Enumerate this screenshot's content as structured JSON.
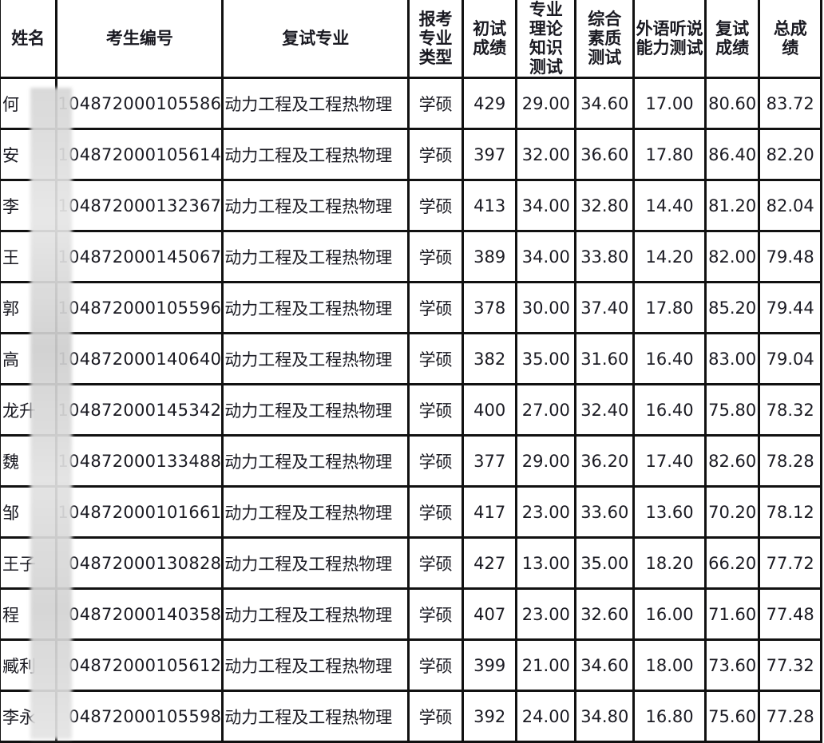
{
  "headers": [
    "姓名",
    "考生编号",
    "复试专业",
    "报考专业类型",
    "初试成绩",
    "专业理论知识测试",
    "综合素质测试",
    "外语听说能力测试",
    "复试成绩",
    "总成绩"
  ],
  "rows": [
    [
      "何",
      "104872000105586",
      "动力工程及工程热物理",
      "学硕",
      "429",
      "29.00",
      "34.60",
      "17.00",
      "80.60",
      "83.72"
    ],
    [
      "安",
      "104872000105614",
      "动力工程及工程热物理",
      "学硕",
      "397",
      "32.00",
      "36.60",
      "17.80",
      "86.40",
      "82.20"
    ],
    [
      "李",
      "104872000132367",
      "动力工程及工程热物理",
      "学硕",
      "413",
      "34.00",
      "32.80",
      "14.40",
      "81.20",
      "82.04"
    ],
    [
      "王",
      "104872000145067",
      "动力工程及工程热物理",
      "学硕",
      "389",
      "34.00",
      "33.80",
      "14.20",
      "82.00",
      "79.48"
    ],
    [
      "郭",
      "104872000105596",
      "动力工程及工程热物理",
      "学硕",
      "378",
      "30.00",
      "37.40",
      "17.80",
      "85.20",
      "79.44"
    ],
    [
      "高",
      "104872000140640",
      "动力工程及工程热物理",
      "学硕",
      "382",
      "35.00",
      "31.60",
      "16.40",
      "83.00",
      "79.04"
    ],
    [
      "龙升",
      "104872000145342",
      "动力工程及工程热物理",
      "学硕",
      "400",
      "27.00",
      "32.40",
      "16.40",
      "75.80",
      "78.32"
    ],
    [
      "魏",
      "104872000133488",
      "动力工程及工程热物理",
      "学硕",
      "377",
      "29.00",
      "36.20",
      "17.40",
      "82.60",
      "78.28"
    ],
    [
      "邹",
      "104872000101661",
      "动力工程及工程热物理",
      "学硕",
      "417",
      "23.00",
      "33.60",
      "13.60",
      "70.20",
      "78.12"
    ],
    [
      "王子",
      "04872000130828",
      "动力工程及工程热物理",
      "学硕",
      "427",
      "13.00",
      "35.00",
      "18.20",
      "66.20",
      "77.72"
    ],
    [
      "程",
      "04872000140358",
      "动力工程及工程热物理",
      "学硕",
      "407",
      "23.00",
      "32.60",
      "16.00",
      "71.60",
      "77.48"
    ],
    [
      "臧利",
      "04872000105612",
      "动力工程及工程热物理",
      "学硕",
      "399",
      "21.00",
      "34.60",
      "18.00",
      "73.60",
      "77.32"
    ],
    [
      "李永",
      "04872000105598",
      "动力工程及工程热物理",
      "学硕",
      "392",
      "24.00",
      "34.80",
      "16.80",
      "75.60",
      "77.28"
    ]
  ]
}
